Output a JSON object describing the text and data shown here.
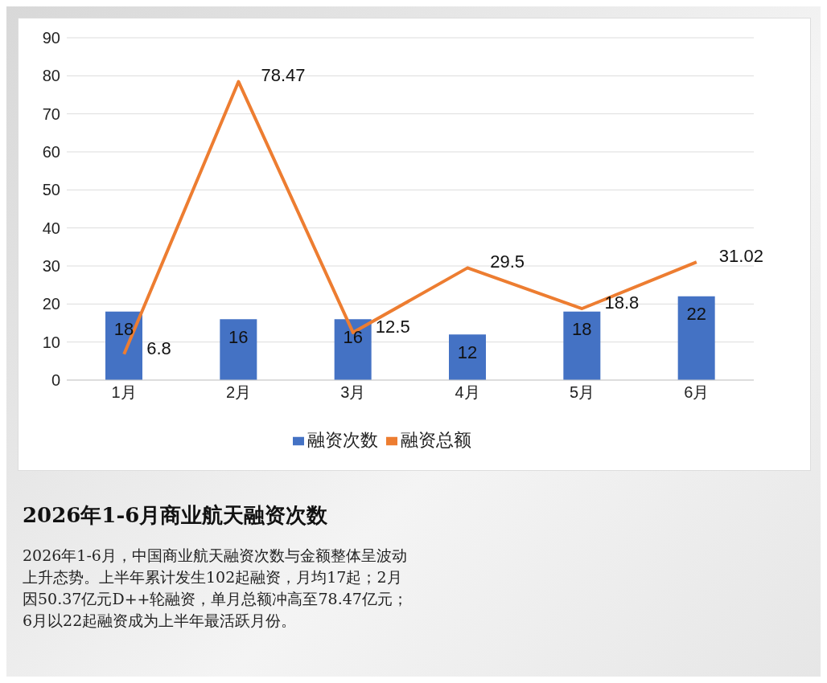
{
  "chart_data": {
    "type": "bar",
    "title": "2026年1-6月商业航天融资次数",
    "categories": [
      "1月",
      "2月",
      "3月",
      "4月",
      "5月",
      "6月"
    ],
    "series": [
      {
        "name": "融资次数",
        "color": "#4472c4",
        "values": [
          18,
          16,
          16,
          12,
          18,
          22
        ]
      },
      {
        "name": "融资总额",
        "type": "line",
        "color": "#ed7d31",
        "values": [
          6.8,
          78.47,
          12.5,
          29.5,
          18.8,
          31.02
        ]
      }
    ],
    "ylim": [
      0,
      90
    ],
    "yticks": [
      0,
      10,
      20,
      30,
      40,
      50,
      60,
      70,
      80,
      90
    ],
    "grid": "y",
    "legend": "bottom",
    "data_labels": true,
    "marker": "none",
    "annotations": [
      "2026年1-6月，中国商业航天融资次数与金额整体呈波动上升态势。上半年累计发生102起融资，月均17起；2月因50.37亿元D++轮融资，单月总额冲高至78.47亿元；6月以22起融资成为上半年最活跃月份。"
    ]
  }
}
